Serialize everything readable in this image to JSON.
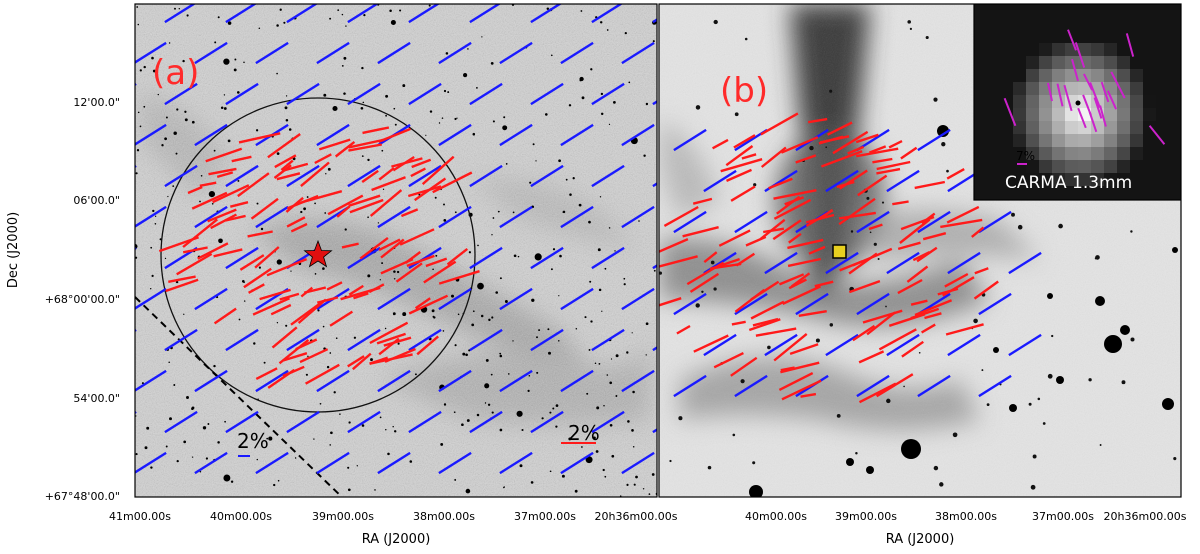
{
  "figure": {
    "panel_a": {
      "label": "(a)",
      "scale_bar_blue": "2%",
      "scale_bar_red": "2%",
      "y_ticks": [
        "12'00.0\"",
        "06'00.0\"",
        "+68°00'00.0\"",
        "54'00.0\"",
        "+67°48'00.0\""
      ],
      "x_ticks": [
        "41m00.00s",
        "40m00.00s",
        "39m00.00s",
        "38m00.00s",
        "37m00.00s",
        "20h36m00.00s"
      ],
      "xlabel": "RA (J2000)",
      "ylabel": "Dec (J2000)"
    },
    "panel_b": {
      "label": "(b)",
      "x_ticks": [
        "40m00.00s",
        "39m00.00s",
        "38m00.00s",
        "37m00.00s",
        "20h36m00.00s"
      ],
      "xlabel": "RA (J2000)",
      "inset": {
        "label": "CARMA 1.3mm",
        "scale": "7%"
      }
    },
    "colors": {
      "optical_vectors": "#ff1a1a",
      "planck_vectors": "#1a1aff",
      "carma_vectors": "#cc22cc",
      "source_marker": "#e8d020"
    }
  }
}
